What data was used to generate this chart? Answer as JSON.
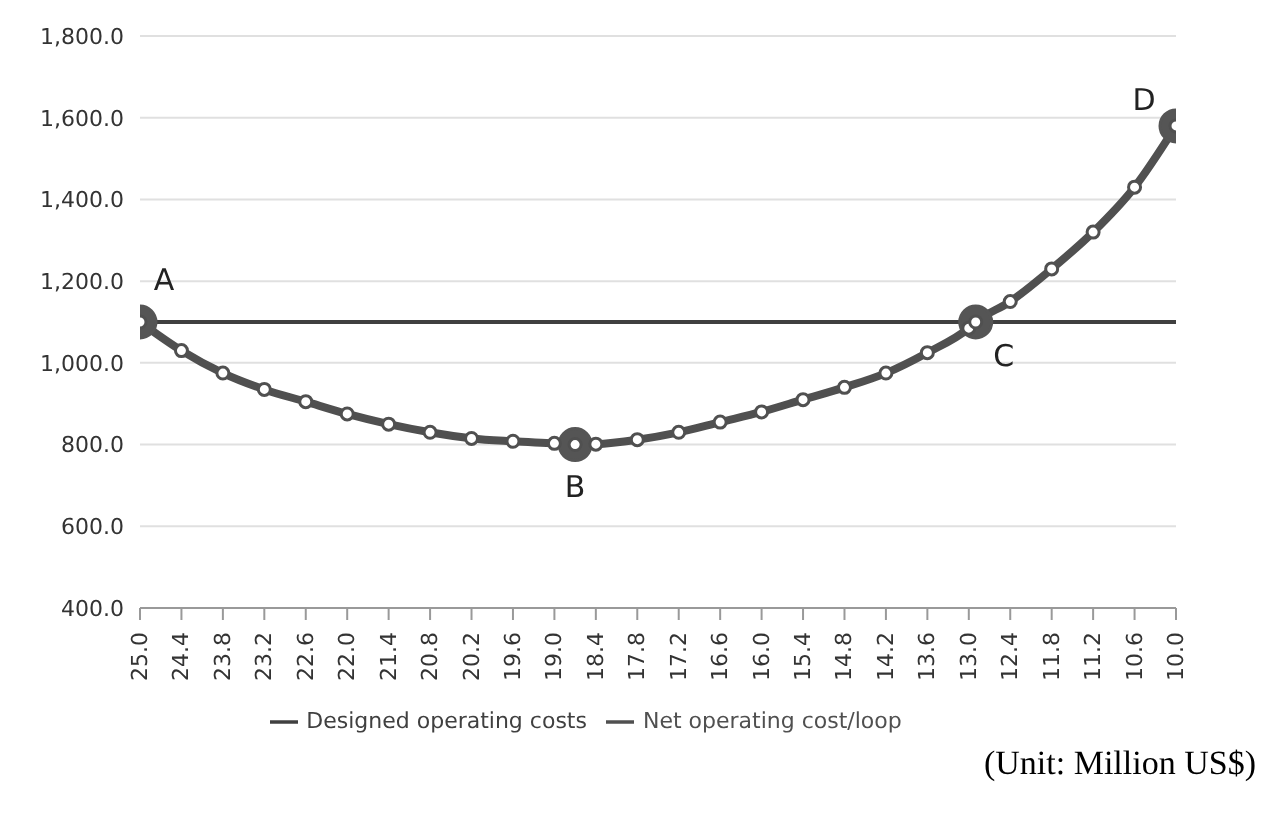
{
  "chart_data": {
    "type": "line",
    "xlim": [
      25,
      10
    ],
    "xticks": [
      {
        "value": 25,
        "label": "25.0"
      },
      {
        "value": 24.4,
        "label": "24.4"
      },
      {
        "value": 23.8,
        "label": "23.8"
      },
      {
        "value": 23.2,
        "label": "23.2"
      },
      {
        "value": 22.6,
        "label": "22.6"
      },
      {
        "value": 22,
        "label": "22.0"
      },
      {
        "value": 21.4,
        "label": "21.4"
      },
      {
        "value": 20.8,
        "label": "20.8"
      },
      {
        "value": 20.2,
        "label": "20.2"
      },
      {
        "value": 19.6,
        "label": "19.6"
      },
      {
        "value": 19,
        "label": "19.0"
      },
      {
        "value": 18.4,
        "label": "18.4"
      },
      {
        "value": 17.8,
        "label": "17.8"
      },
      {
        "value": 17.2,
        "label": "17.2"
      },
      {
        "value": 16.6,
        "label": "16.6"
      },
      {
        "value": 16,
        "label": "16.0"
      },
      {
        "value": 15.4,
        "label": "15.4"
      },
      {
        "value": 14.8,
        "label": "14.8"
      },
      {
        "value": 14.2,
        "label": "14.2"
      },
      {
        "value": 13.6,
        "label": "13.6"
      },
      {
        "value": 13,
        "label": "13.0"
      },
      {
        "value": 12.4,
        "label": "12.4"
      },
      {
        "value": 11.8,
        "label": "11.8"
      },
      {
        "value": 11.2,
        "label": "11.2"
      },
      {
        "value": 10.6,
        "label": "10.6"
      },
      {
        "value": 10,
        "label": "10.0"
      }
    ],
    "ylim": [
      400,
      1800
    ],
    "yticks": [
      {
        "value": 400,
        "label": "400.0"
      },
      {
        "value": 600,
        "label": "600.0"
      },
      {
        "value": 800,
        "label": "800.0"
      },
      {
        "value": 1000,
        "label": "1,000.0"
      },
      {
        "value": 1200,
        "label": "1,200.0"
      },
      {
        "value": 1400,
        "label": "1,400.0"
      },
      {
        "value": 1600,
        "label": "1,600.0"
      },
      {
        "value": 1800,
        "label": "1,800.0"
      }
    ],
    "grid": "y",
    "legend": "bottom",
    "series": [
      {
        "name": "Designed operating costs",
        "color": "#404040",
        "x": [
          25,
          10
        ],
        "values": [
          1100,
          1100
        ]
      },
      {
        "name": "Net operating cost/loop",
        "color": "#505050",
        "marker": "circle",
        "x": [
          25,
          24.4,
          23.8,
          23.2,
          22.6,
          22,
          21.4,
          20.8,
          20.2,
          19.6,
          19,
          18.7,
          18.4,
          17.8,
          17.2,
          16.6,
          16,
          15.4,
          14.8,
          14.2,
          13.6,
          13,
          12.9,
          12.4,
          11.8,
          11.2,
          10.6,
          10
        ],
        "values": [
          1100,
          1030,
          975,
          935,
          905,
          875,
          850,
          830,
          815,
          808,
          803,
          800,
          801,
          812,
          830,
          855,
          880,
          910,
          940,
          975,
          1025,
          1085,
          1100,
          1150,
          1230,
          1320,
          1430,
          1580
        ]
      },
      {
        "type": "scatter",
        "color": "#555555",
        "marker": "circle",
        "x": [
          25,
          18.7,
          12.9,
          10
        ],
        "values": [
          1100,
          800,
          1100,
          1580
        ]
      }
    ],
    "annotations": [
      {
        "text": "A",
        "x": 25,
        "y": 1100
      },
      {
        "text": "B",
        "x": 18.7,
        "y": 800
      },
      {
        "text": "C",
        "x": 12.9,
        "y": 1100
      },
      {
        "text": "D",
        "x": 10,
        "y": 1580
      },
      "(Unit: Million US$)"
    ]
  }
}
